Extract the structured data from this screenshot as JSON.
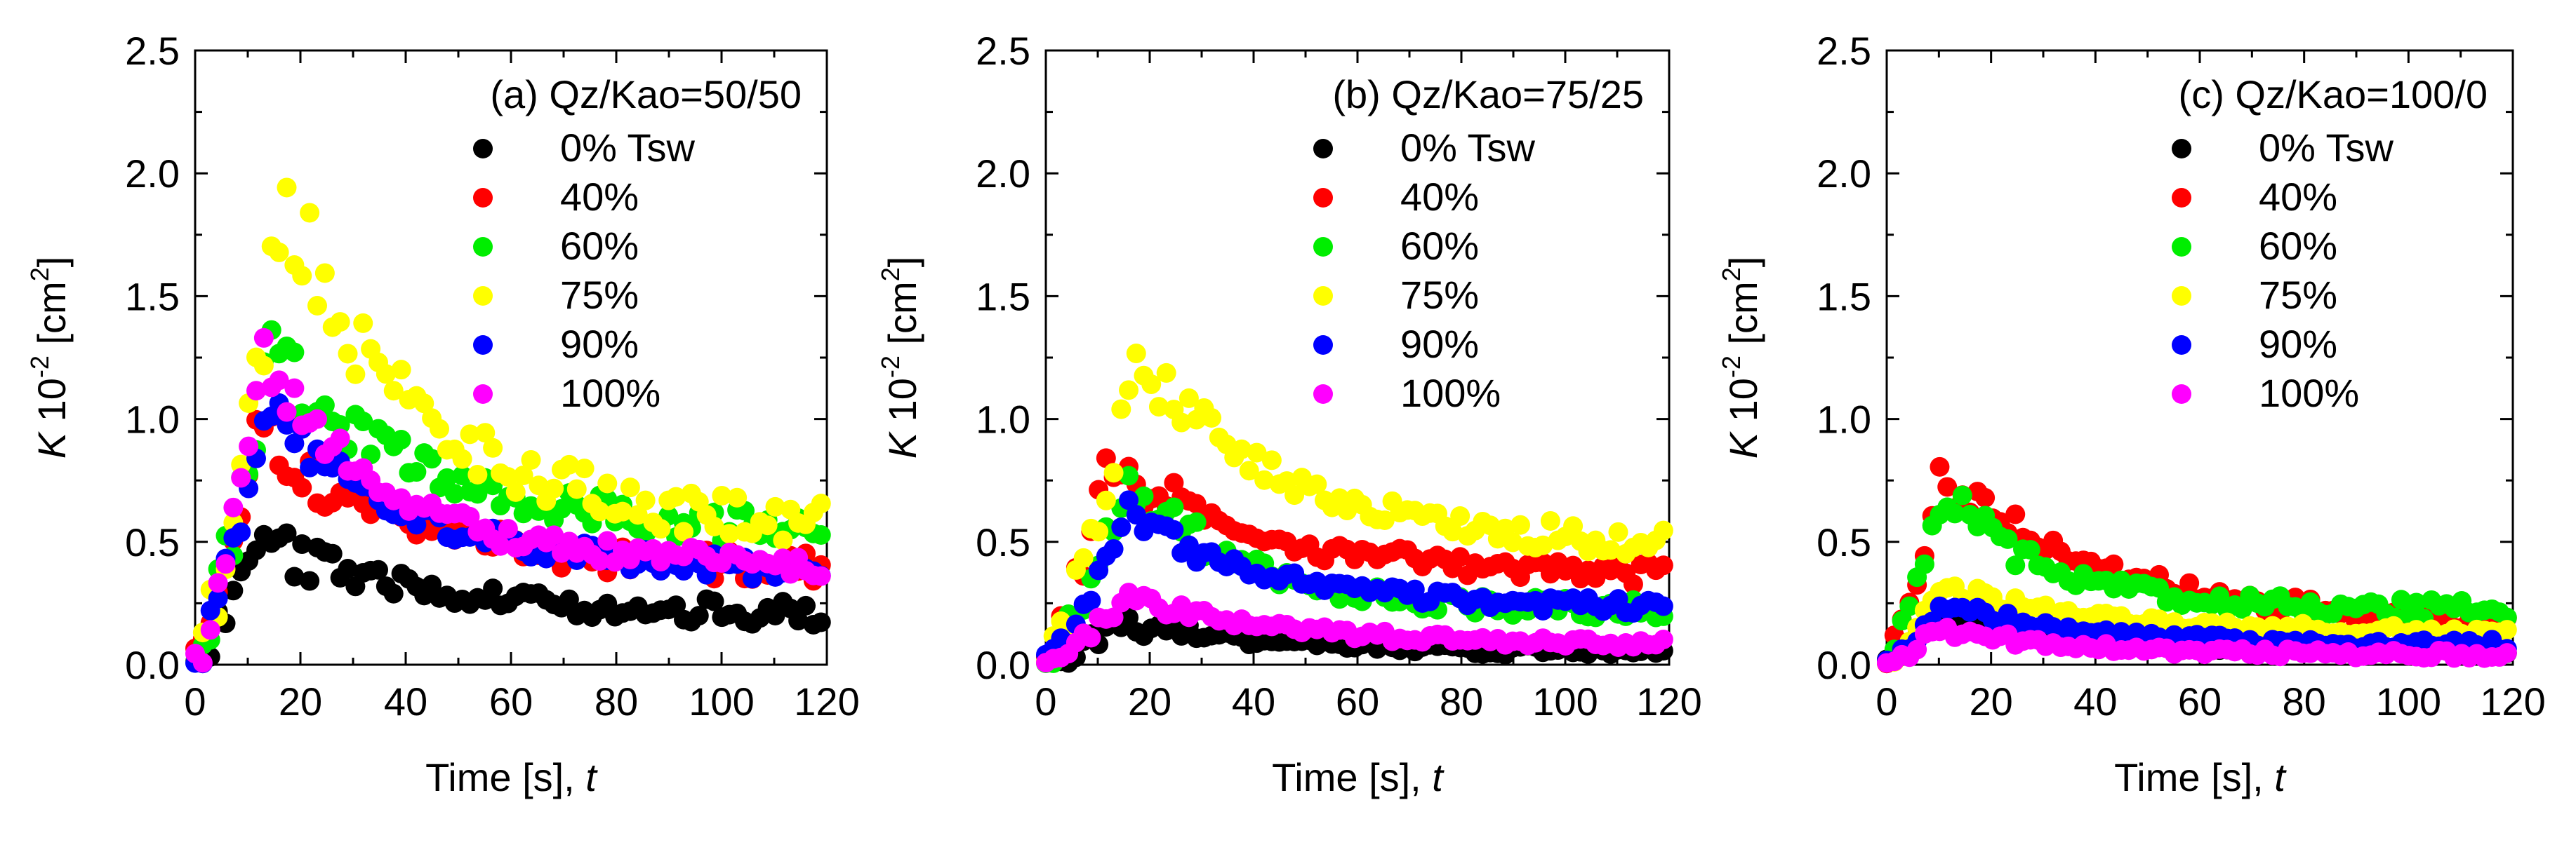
{
  "chart_data": [
    {
      "type": "scatter",
      "title": "(a) Qz/Kao=50/50",
      "xlabel_main": "Time [s], ",
      "xlabel_italic": "t",
      "ylabel_symbol": "K",
      "ylabel_base": " 10",
      "ylabel_exp": "-2",
      "ylabel_unit_open": " [cm",
      "ylabel_unit_exp": "2",
      "ylabel_unit_close": "]",
      "xlim": [
        0,
        120
      ],
      "ylim": [
        0,
        2.5
      ],
      "xticks": [
        "0",
        "20",
        "40",
        "60",
        "80",
        "100",
        "120"
      ],
      "yticks": [
        "0.0",
        "0.5",
        "1.0",
        "1.5",
        "2.0",
        "2.5"
      ],
      "legend_position": "top-right",
      "series": [
        {
          "name": "0% Tsw",
          "color": "#000000",
          "peak": 0.5,
          "tpeak": 12,
          "tail": 0.2,
          "tau": 30,
          "noise": 0.05
        },
        {
          "name": "40%",
          "color": "#ff0000",
          "peak": 0.95,
          "tpeak": 12,
          "tail": 0.38,
          "tau": 28,
          "noise": 0.06
        },
        {
          "name": "60%",
          "color": "#00ee00",
          "peak": 1.25,
          "tpeak": 14,
          "tail": 0.52,
          "tau": 32,
          "noise": 0.07
        },
        {
          "name": "75%",
          "color": "#ffff00",
          "peak": 1.9,
          "tpeak": 17,
          "tail": 0.58,
          "tau": 24,
          "noise": 0.1
        },
        {
          "name": "90%",
          "color": "#0000ff",
          "peak": 1.05,
          "tpeak": 14,
          "tail": 0.38,
          "tau": 26,
          "noise": 0.05
        },
        {
          "name": "100%",
          "color": "#ff00ff",
          "peak": 1.25,
          "tpeak": 13,
          "tail": 0.4,
          "tau": 24,
          "noise": 0.05
        }
      ]
    },
    {
      "type": "scatter",
      "title": "(b) Qz/Kao=75/25",
      "xlabel_main": "Time [s], ",
      "xlabel_italic": "t",
      "ylabel_symbol": "K",
      "ylabel_base": " 10",
      "ylabel_exp": "-2",
      "ylabel_unit_open": " [cm",
      "ylabel_unit_exp": "2",
      "ylabel_unit_close": "]",
      "xlim": [
        0,
        120
      ],
      "ylim": [
        0,
        2.5
      ],
      "xticks": [
        "0",
        "20",
        "40",
        "60",
        "80",
        "100",
        "120"
      ],
      "yticks": [
        "0.0",
        "0.5",
        "1.0",
        "1.5",
        "2.0",
        "2.5"
      ],
      "legend_position": "top-right",
      "series": [
        {
          "name": "0% Tsw",
          "color": "#000000",
          "peak": 0.17,
          "tpeak": 14,
          "tail": 0.05,
          "tau": 30,
          "noise": 0.02
        },
        {
          "name": "40%",
          "color": "#ff0000",
          "peak": 0.82,
          "tpeak": 12,
          "tail": 0.35,
          "tau": 30,
          "noise": 0.05
        },
        {
          "name": "60%",
          "color": "#00ee00",
          "peak": 0.75,
          "tpeak": 16,
          "tail": 0.22,
          "tau": 22,
          "noise": 0.04
        },
        {
          "name": "75%",
          "color": "#ffff00",
          "peak": 1.25,
          "tpeak": 18,
          "tail": 0.48,
          "tau": 28,
          "noise": 0.06
        },
        {
          "name": "90%",
          "color": "#0000ff",
          "peak": 0.62,
          "tpeak": 16,
          "tail": 0.23,
          "tau": 26,
          "noise": 0.03
        },
        {
          "name": "100%",
          "color": "#ff00ff",
          "peak": 0.27,
          "tpeak": 16,
          "tail": 0.08,
          "tau": 30,
          "noise": 0.02
        }
      ]
    },
    {
      "type": "scatter",
      "title": "(c) Qz/Kao=100/0",
      "xlabel_main": "Time [s], ",
      "xlabel_italic": "t",
      "ylabel_symbol": "K",
      "ylabel_base": " 10",
      "ylabel_exp": "-2",
      "ylabel_unit_open": " [cm",
      "ylabel_unit_exp": "2",
      "ylabel_unit_close": "]",
      "xlim": [
        0,
        120
      ],
      "ylim": [
        0,
        2.5
      ],
      "xticks": [
        "0",
        "20",
        "40",
        "60",
        "80",
        "100",
        "120"
      ],
      "yticks": [
        "0.0",
        "0.5",
        "1.0",
        "1.5",
        "2.0",
        "2.5"
      ],
      "legend_position": "top-right",
      "series": [
        {
          "name": "0% Tsw",
          "color": "#000000",
          "peak": 0.2,
          "tpeak": 10,
          "tail": 0.06,
          "tau": 25,
          "noise": 0.02
        },
        {
          "name": "40%",
          "color": "#ff0000",
          "peak": 0.75,
          "tpeak": 10,
          "tail": 0.15,
          "tau": 35,
          "noise": 0.04
        },
        {
          "name": "60%",
          "color": "#00ee00",
          "peak": 0.72,
          "tpeak": 11,
          "tail": 0.22,
          "tau": 20,
          "noise": 0.04
        },
        {
          "name": "75%",
          "color": "#ffff00",
          "peak": 0.33,
          "tpeak": 10,
          "tail": 0.13,
          "tau": 28,
          "noise": 0.02
        },
        {
          "name": "90%",
          "color": "#0000ff",
          "peak": 0.25,
          "tpeak": 10,
          "tail": 0.08,
          "tau": 25,
          "noise": 0.02
        },
        {
          "name": "100%",
          "color": "#ff00ff",
          "peak": 0.15,
          "tpeak": 10,
          "tail": 0.04,
          "tau": 25,
          "noise": 0.015
        }
      ]
    }
  ]
}
